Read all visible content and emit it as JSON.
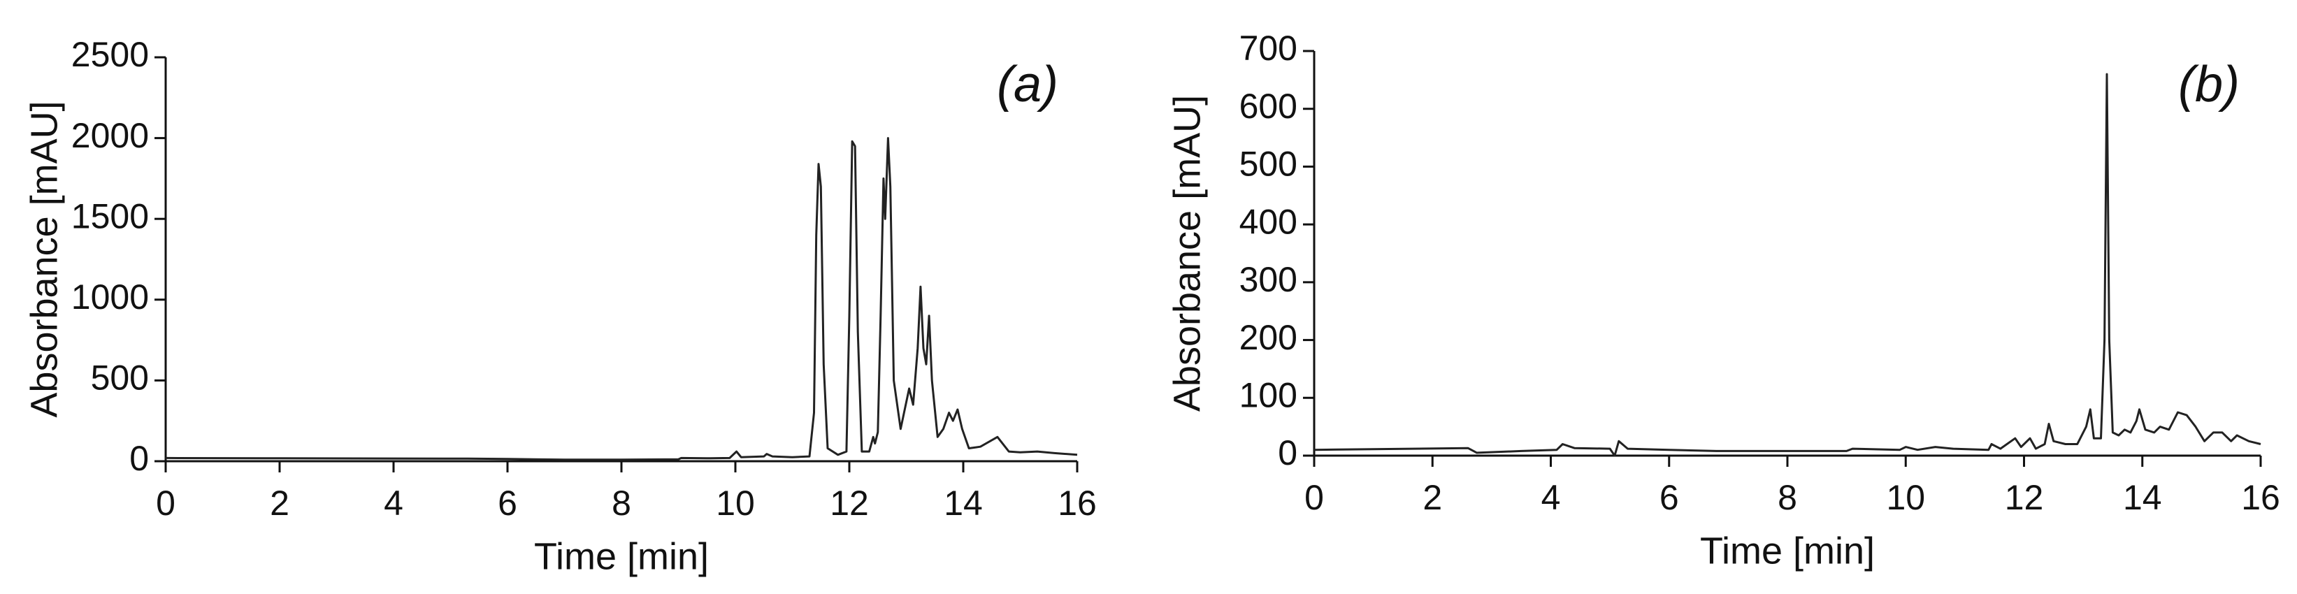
{
  "chart_data": [
    {
      "type": "line",
      "annotation": "(a)",
      "x_label": "Time [min]",
      "y_label": "Absorbance [mAU]",
      "xlim": [
        0,
        16
      ],
      "xticks": [
        0,
        2,
        4,
        6,
        8,
        10,
        12,
        14,
        16
      ],
      "ylim": [
        0,
        2500
      ],
      "yticks": [
        0,
        500,
        1000,
        1500,
        2000,
        2500
      ],
      "series": [
        {
          "color": "#222222",
          "x": [
            0,
            2,
            4,
            5.3,
            6,
            7,
            8,
            9,
            9.05,
            9.5,
            9.9,
            10.02,
            10.1,
            10.5,
            10.55,
            10.65,
            11,
            11.3,
            11.38,
            11.42,
            11.46,
            11.5,
            11.55,
            11.62,
            11.8,
            11.95,
            12.0,
            12.05,
            12.1,
            12.15,
            12.22,
            12.35,
            12.42,
            12.45,
            12.5,
            12.55,
            12.6,
            12.63,
            12.68,
            12.72,
            12.78,
            12.9,
            13.05,
            13.12,
            13.2,
            13.25,
            13.3,
            13.35,
            13.4,
            13.45,
            13.55,
            13.65,
            13.75,
            13.82,
            13.9,
            13.98,
            14.1,
            14.3,
            14.6,
            14.8,
            15,
            15.3,
            15.6,
            16
          ],
          "values": [
            20,
            18,
            17,
            16,
            14,
            10,
            10,
            12,
            20,
            18,
            20,
            60,
            25,
            30,
            45,
            30,
            25,
            30,
            300,
            1400,
            1840,
            1700,
            600,
            80,
            40,
            60,
            900,
            1980,
            1950,
            800,
            60,
            60,
            150,
            110,
            180,
            900,
            1750,
            1500,
            2000,
            1700,
            500,
            200,
            450,
            350,
            700,
            1080,
            700,
            600,
            900,
            500,
            150,
            200,
            300,
            250,
            320,
            200,
            80,
            90,
            150,
            60,
            55,
            60,
            50,
            40
          ]
        }
      ]
    },
    {
      "type": "line",
      "annotation": "(b)",
      "x_label": "Time [min]",
      "y_label": "Absorbance [mAU]",
      "xlim": [
        0,
        16
      ],
      "xticks": [
        0,
        2,
        4,
        6,
        8,
        10,
        12,
        14,
        16
      ],
      "ylim": [
        0,
        700
      ],
      "yticks": [
        0,
        100,
        200,
        300,
        400,
        500,
        600,
        700
      ],
      "series": [
        {
          "color": "#222222",
          "x": [
            0,
            2.6,
            2.75,
            3.5,
            4.1,
            4.2,
            4.4,
            5.0,
            5.08,
            5.15,
            5.3,
            6,
            6.8,
            7.5,
            9,
            9.1,
            9.9,
            10.0,
            10.2,
            10.5,
            10.8,
            11.4,
            11.45,
            11.6,
            11.85,
            11.95,
            12.1,
            12.2,
            12.35,
            12.42,
            12.5,
            12.7,
            12.9,
            13.05,
            13.12,
            13.18,
            13.3,
            13.36,
            13.4,
            13.44,
            13.5,
            13.6,
            13.7,
            13.8,
            13.9,
            13.95,
            14.05,
            14.2,
            14.3,
            14.45,
            14.6,
            14.75,
            14.9,
            15.05,
            15.2,
            15.35,
            15.5,
            15.6,
            15.8,
            16
          ],
          "values": [
            10,
            13,
            5,
            8,
            10,
            20,
            13,
            12,
            0,
            25,
            12,
            10,
            8,
            8,
            8,
            12,
            10,
            15,
            10,
            15,
            12,
            10,
            20,
            12,
            30,
            15,
            30,
            12,
            20,
            55,
            25,
            20,
            20,
            50,
            80,
            30,
            30,
            200,
            660,
            200,
            40,
            35,
            45,
            40,
            60,
            80,
            45,
            40,
            50,
            45,
            75,
            70,
            50,
            25,
            40,
            40,
            25,
            35,
            25,
            20
          ]
        }
      ]
    }
  ]
}
